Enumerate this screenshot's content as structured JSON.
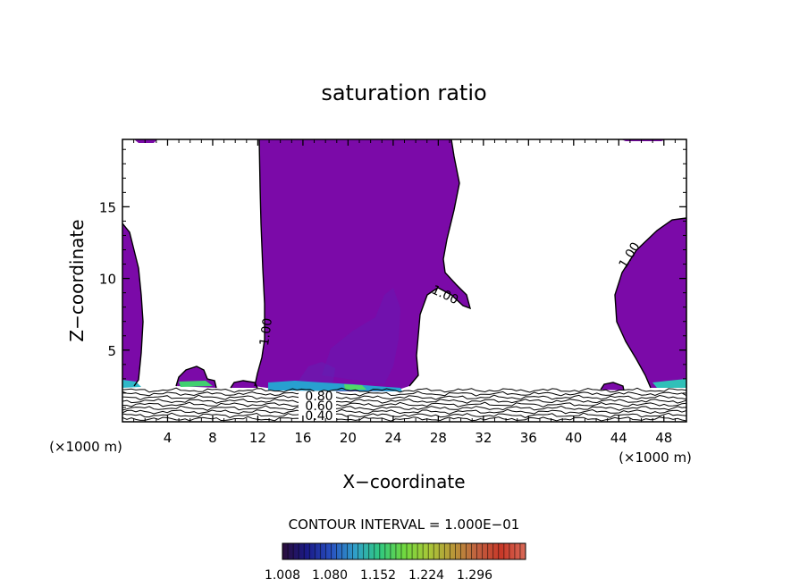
{
  "chart_data": {
    "type": "contour",
    "title": "saturation ratio",
    "xlabel": "X−coordinate",
    "ylabel": "Z−coordinate",
    "x_unit": "(×1000 m)",
    "y_unit": "(×1000 m)",
    "xlim": [
      0,
      50
    ],
    "ylim": [
      0,
      19.7
    ],
    "x_ticks": [
      4,
      8,
      12,
      16,
      20,
      24,
      28,
      32,
      36,
      40,
      44,
      48
    ],
    "y_ticks": [
      5,
      10,
      15
    ],
    "contour_interval": "CONTOUR INTERVAL = 1.000E−01",
    "contour_labels": [
      {
        "text": "1.00",
        "x": 12.8,
        "z": 6.3
      },
      {
        "text": "1.00",
        "x": 28.3,
        "z": 8.7
      },
      {
        "text": "1.00",
        "x": 45.5,
        "z": 11.5
      },
      {
        "text": "0.80",
        "x": 17.8,
        "z": 1.8
      },
      {
        "text": "0.60",
        "x": 17.8,
        "z": 1.2
      },
      {
        "text": "0.40",
        "x": 17.8,
        "z": 0.5
      }
    ],
    "colorbar": {
      "ticks": [
        "1.008",
        "1.080",
        "1.152",
        "1.224",
        "1.296"
      ],
      "colors": [
        "#2b0d3a",
        "#1a1a88",
        "#2850c0",
        "#30a0c8",
        "#30c880",
        "#70d840",
        "#a8c838",
        "#b89838",
        "#c06040",
        "#c83828",
        "#d86a58"
      ]
    },
    "fill_color": "#7b0aa8"
  }
}
